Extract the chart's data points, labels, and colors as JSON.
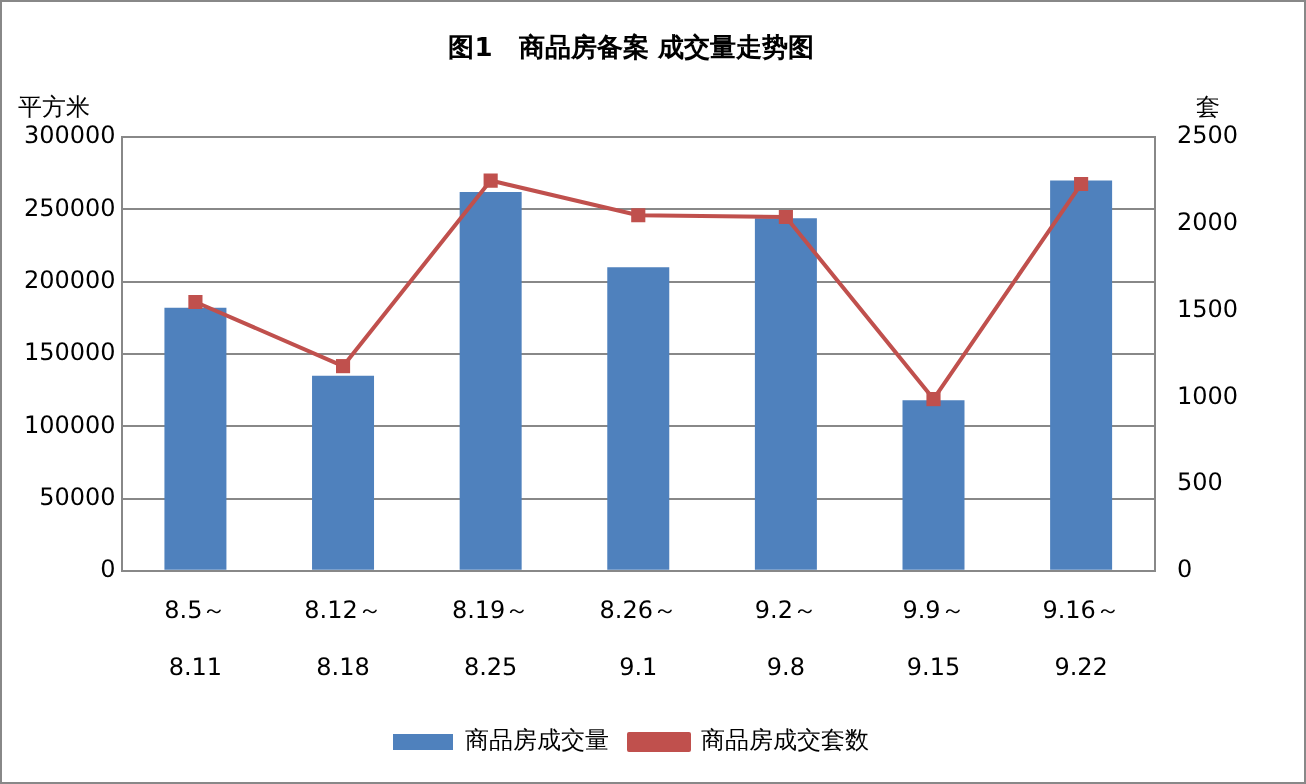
{
  "chart_data": {
    "type": "bar",
    "title": "图1　商品房备案 成交量走势图",
    "ylabel": "平方米",
    "y2label": "套",
    "categories": [
      "8.5～\n8.11",
      "8.12～\n8.18",
      "8.19～\n8.25",
      "8.26～\n9.1",
      "9.2～\n9.8",
      "9.9～\n9.15",
      "9.16～\n9.22"
    ],
    "series": [
      {
        "name": "商品房成交量",
        "color": "#4f81bd",
        "values": [
          182000,
          135000,
          262000,
          210000,
          244000,
          118000,
          270000
        ]
      },
      {
        "name": "商品房成交套数",
        "type": "line",
        "axis": "y2",
        "color": "#c0504d",
        "marker": "square",
        "values": [
          1550,
          1180,
          2250,
          2050,
          2040,
          990,
          2230
        ]
      }
    ],
    "ylim": [
      0,
      300000
    ],
    "yticks": [
      0,
      50000,
      100000,
      150000,
      200000,
      250000,
      300000
    ],
    "y2lim": [
      0,
      2500
    ],
    "y2ticks": [
      0,
      500,
      1000,
      1500,
      2000,
      2500
    ],
    "grid": "y",
    "legend": "bottom"
  }
}
